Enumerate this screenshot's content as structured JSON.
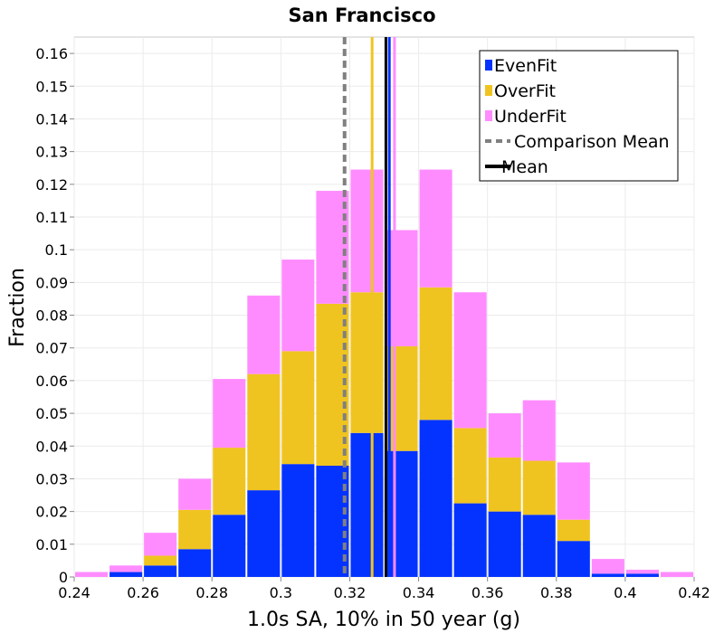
{
  "chart_data": {
    "type": "bar",
    "stacked": true,
    "title": "San Francisco",
    "xlabel": "1.0s SA, 10% in 50 year (g)",
    "ylabel": "Fraction",
    "xlim": [
      0.24,
      0.42
    ],
    "ylim": [
      0,
      0.165
    ],
    "bin_width": 0.01,
    "grid": true,
    "legend_position": "top-right",
    "x_ticks": [
      "0.24",
      "0.26",
      "0.28",
      "0.3",
      "0.32",
      "0.34",
      "0.36",
      "0.38",
      "0.4",
      "0.42"
    ],
    "x_tick_values": [
      0.24,
      0.26,
      0.28,
      0.3,
      0.32,
      0.34,
      0.36,
      0.38,
      0.4,
      0.42
    ],
    "y_ticks": [
      "0",
      "0.01",
      "0.02",
      "0.03",
      "0.04",
      "0.05",
      "0.06",
      "0.07",
      "0.08",
      "0.09",
      "0.1",
      "0.11",
      "0.12",
      "0.13",
      "0.14",
      "0.15",
      "0.16"
    ],
    "y_tick_values": [
      0,
      0.01,
      0.02,
      0.03,
      0.04,
      0.05,
      0.06,
      0.07,
      0.08,
      0.09,
      0.1,
      0.11,
      0.12,
      0.13,
      0.14,
      0.15,
      0.16
    ],
    "bin_starts": [
      0.24,
      0.25,
      0.26,
      0.27,
      0.28,
      0.29,
      0.3,
      0.31,
      0.32,
      0.33,
      0.34,
      0.35,
      0.36,
      0.37,
      0.38,
      0.39,
      0.4,
      0.41
    ],
    "series": [
      {
        "name": "EvenFit",
        "color": "#0433ff",
        "values": [
          0.0,
          0.0015,
          0.0035,
          0.0085,
          0.019,
          0.0265,
          0.0345,
          0.034,
          0.044,
          0.0385,
          0.048,
          0.0225,
          0.02,
          0.019,
          0.011,
          0.001,
          0.001,
          0.0
        ]
      },
      {
        "name": "OverFit",
        "color": "#f0c420",
        "values": [
          0.0,
          0.0,
          0.003,
          0.012,
          0.0205,
          0.0355,
          0.0345,
          0.0495,
          0.043,
          0.032,
          0.0405,
          0.023,
          0.0165,
          0.0165,
          0.0065,
          0.0,
          0.0,
          0.0
        ]
      },
      {
        "name": "UnderFit",
        "color": "#ff8cff",
        "values": [
          0.0015,
          0.002,
          0.007,
          0.0095,
          0.021,
          0.024,
          0.028,
          0.0345,
          0.0375,
          0.0355,
          0.036,
          0.0415,
          0.0135,
          0.0185,
          0.0175,
          0.0045,
          0.0012,
          0.0015
        ]
      }
    ],
    "vertical_lines": [
      {
        "name": "Comparison Mean",
        "x": 0.3185,
        "color": "#808080",
        "style": "dashed",
        "legend": true
      },
      {
        "name": "Mean",
        "x": 0.3305,
        "color": "#000000",
        "style": "solid",
        "legend": true
      },
      {
        "name": "",
        "x": 0.3265,
        "color": "#f0c420",
        "style": "solid",
        "legend": false
      },
      {
        "name": "",
        "x": 0.3315,
        "color": "#0433ff",
        "style": "solid",
        "legend": false
      },
      {
        "name": "",
        "x": 0.333,
        "color": "#ff8cff",
        "style": "solid",
        "legend": false
      }
    ],
    "legend_entries": [
      {
        "label": "EvenFit",
        "kind": "box",
        "color": "#0433ff"
      },
      {
        "label": "OverFit",
        "kind": "box",
        "color": "#f0c420"
      },
      {
        "label": "UnderFit",
        "kind": "box",
        "color": "#ff8cff"
      },
      {
        "label": "Comparison Mean",
        "kind": "dashed",
        "color": "#808080"
      },
      {
        "label": "Mean",
        "kind": "solid",
        "color": "#000000"
      }
    ]
  }
}
